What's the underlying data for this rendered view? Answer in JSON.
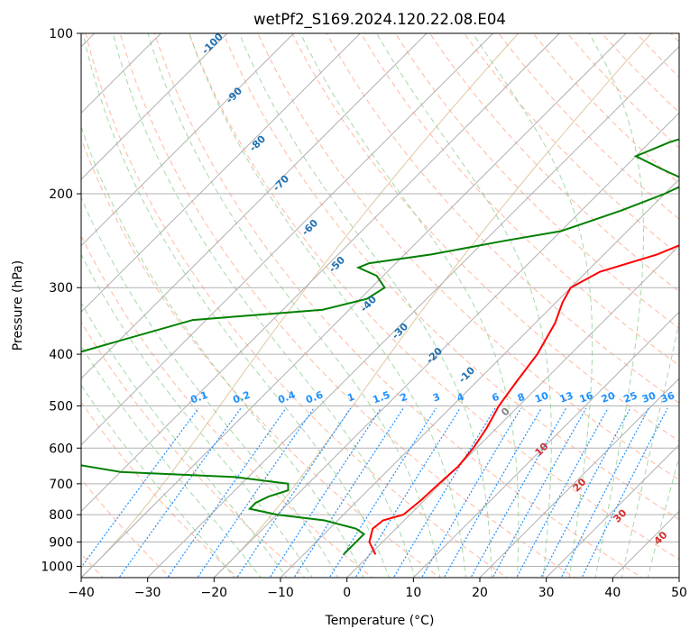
{
  "chart_data": {
    "type": "skewt",
    "title": "wetPf2_S169.2024.120.22.08.E04",
    "xlabel": "Temperature (°C)",
    "ylabel": "Pressure (hPa)",
    "xlim": [
      -40,
      50
    ],
    "ylim": [
      1050,
      100
    ],
    "x_ticks": [
      -40,
      -30,
      -20,
      -10,
      0,
      10,
      20,
      30,
      40,
      50
    ],
    "y_ticks": [
      100,
      200,
      300,
      400,
      500,
      600,
      700,
      800,
      900,
      1000
    ],
    "grid": true,
    "colors": {
      "temperature": "#ff0000",
      "dewpoint": "#008000",
      "isotherm": "#b0b0b0",
      "dry_adiabat": "#ffa080",
      "moist_adiabat": "#90d090",
      "mixing_ratio": "#1e90ff",
      "mixing_ratio_label": "#1e90ff",
      "dry_adiabat_label": "#2070b0",
      "moist_adiabat_label": "#d03030",
      "ccl_label": "#808080",
      "temp_arc": "#e0c8a0"
    },
    "temperature_profile": [
      [
        950,
        0.8
      ],
      [
        900,
        -2
      ],
      [
        850,
        -3.5
      ],
      [
        820,
        -3.2
      ],
      [
        800,
        -1
      ],
      [
        750,
        -0.5
      ],
      [
        700,
        -0.3
      ],
      [
        650,
        0
      ],
      [
        600,
        -0.5
      ],
      [
        550,
        -1.5
      ],
      [
        500,
        -3
      ],
      [
        450,
        -4
      ],
      [
        400,
        -5
      ],
      [
        350,
        -7
      ],
      [
        320,
        -9
      ],
      [
        300,
        -10
      ],
      [
        280,
        -8
      ],
      [
        260,
        -2
      ],
      [
        240,
        2
      ],
      [
        220,
        6
      ],
      [
        200,
        10
      ],
      [
        180,
        16
      ],
      [
        160,
        22
      ],
      [
        140,
        29
      ],
      [
        120,
        35
      ],
      [
        110,
        38
      ],
      [
        100,
        40
      ]
    ],
    "dewpoint_profile": [
      [
        950,
        -4
      ],
      [
        900,
        -4
      ],
      [
        870,
        -4
      ],
      [
        850,
        -6
      ],
      [
        820,
        -12
      ],
      [
        800,
        -20
      ],
      [
        780,
        -25
      ],
      [
        760,
        -25
      ],
      [
        740,
        -24
      ],
      [
        720,
        -22
      ],
      [
        700,
        -23
      ],
      [
        680,
        -32
      ],
      [
        665,
        -50
      ],
      [
        600,
        -75
      ],
      [
        400,
        -75
      ],
      [
        345,
        -62
      ],
      [
        330,
        -44
      ],
      [
        315,
        -39
      ],
      [
        300,
        -38
      ],
      [
        285,
        -41
      ],
      [
        275,
        -45
      ],
      [
        270,
        -44
      ],
      [
        260,
        -36
      ],
      [
        245,
        -27
      ],
      [
        235,
        -20
      ],
      [
        215,
        -14
      ],
      [
        200,
        -10
      ],
      [
        190,
        -8
      ],
      [
        180,
        -14
      ],
      [
        170,
        -20
      ],
      [
        160,
        -17
      ],
      [
        150,
        -12
      ],
      [
        140,
        -6
      ],
      [
        120,
        3
      ],
      [
        110,
        7
      ],
      [
        100,
        9
      ]
    ],
    "dry_adiabat_labels": [
      "-100",
      "-90",
      "-80",
      "-70",
      "-60",
      "-50",
      "-40",
      "-30",
      "-20",
      "-10"
    ],
    "moist_adiabat_labels": [
      "0",
      "10",
      "20",
      "30",
      "40"
    ],
    "mixing_ratio_labels": [
      "0.1",
      "0.2",
      "0.4",
      "0.6",
      "1",
      "1.5",
      "2",
      "3",
      "4",
      "6",
      "8",
      "10",
      "13",
      "16",
      "20",
      "25",
      "30",
      "36"
    ]
  }
}
